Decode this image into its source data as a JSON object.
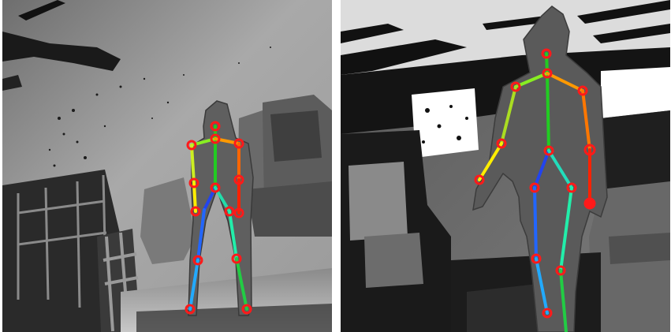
{
  "figure": {
    "panels": [
      {
        "id": "left",
        "description_tag": "depth-image-with-skeleton",
        "person": "standing-front-view",
        "bone_colors": {
          "torso": "#22cc22",
          "shoulder_right": "#88ee22",
          "upper_arm_right": "#ccee22",
          "forearm_right": "#ffee00",
          "shoulder_left": "#ff9900",
          "upper_arm_left": "#ff6600",
          "forearm_left": "#ff2200",
          "hip_right": "#2244ee",
          "thigh_right": "#2266ff",
          "shin_right": "#22aaff",
          "hip_left": "#22ddaa",
          "thigh_left": "#22eeaa",
          "shin_left": "#22cc44"
        },
        "joint_color": "#ff1a1a"
      },
      {
        "id": "right",
        "description_tag": "depth-image-with-skeleton",
        "person": "walking-three-quarter-view",
        "bone_colors": {
          "torso": "#22cc22",
          "shoulder_right": "#88ee22",
          "upper_arm_right": "#aadd22",
          "forearm_right": "#ffee00",
          "shoulder_left": "#ff9900",
          "upper_arm_left": "#ff7700",
          "forearm_left": "#ff2200",
          "hip_right": "#2244ee",
          "thigh_right": "#2266ff",
          "shin_right": "#22aaff",
          "hip_left": "#22ddbb",
          "thigh_left": "#22eeaa",
          "shin_left": "#22cc44"
        },
        "joint_color": "#ff1a1a"
      }
    ]
  }
}
